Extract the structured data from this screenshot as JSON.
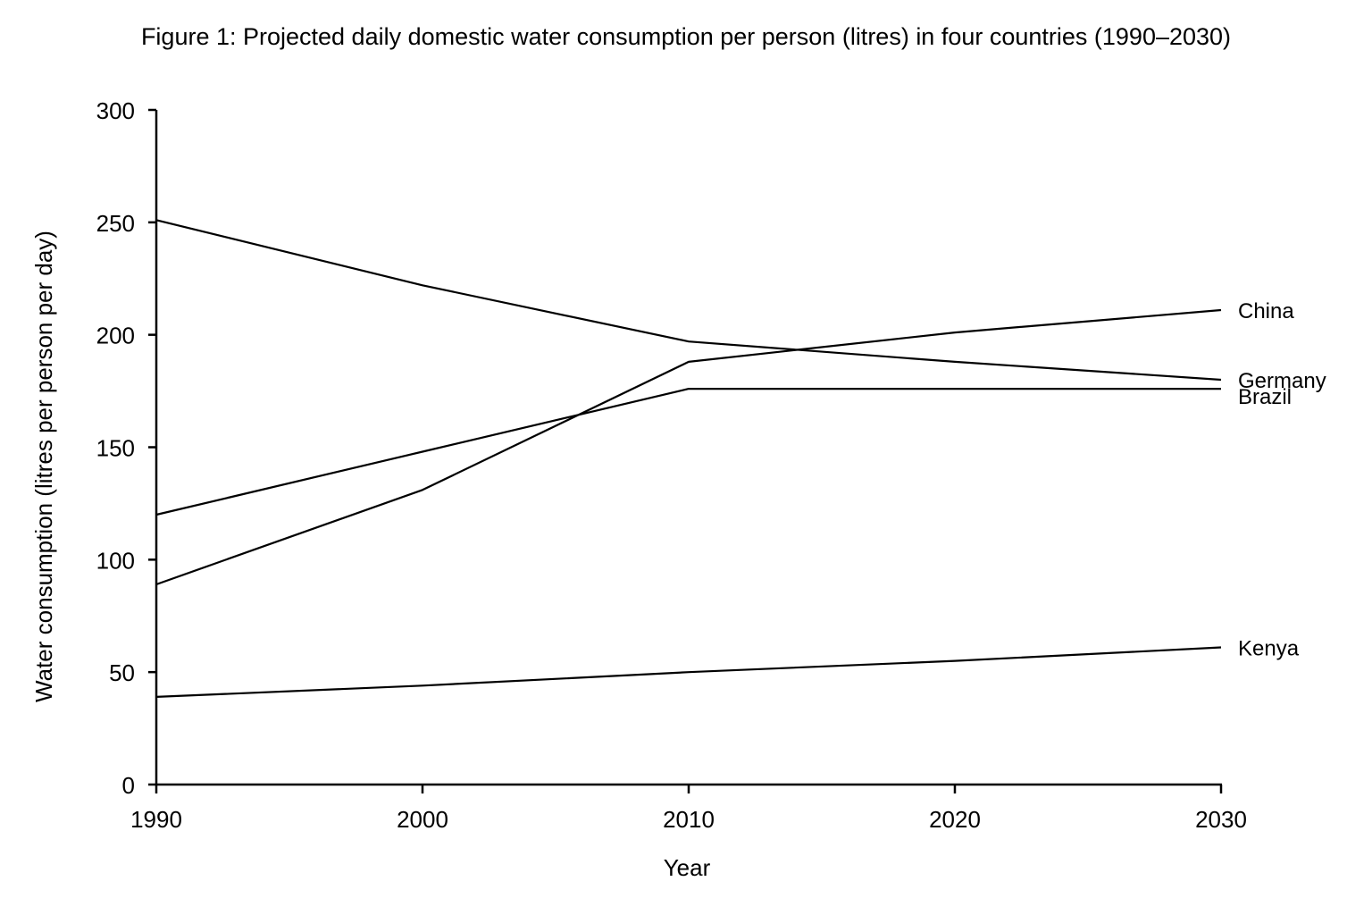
{
  "chart_data": {
    "type": "line",
    "title": "Figure 1: Projected daily domestic water consumption per person (litres) in four countries (1990–2030)",
    "xlabel": "Year",
    "ylabel": "Water consumption (litres per person per day)",
    "x": [
      1990,
      2000,
      2010,
      2020,
      2030
    ],
    "xlim": [
      1990,
      2030
    ],
    "ylim": [
      0,
      300
    ],
    "x_ticks": [
      "1990",
      "2000",
      "2010",
      "2020",
      "2030"
    ],
    "y_ticks": [
      "0",
      "50",
      "100",
      "150",
      "200",
      "250",
      "300"
    ],
    "grid": false,
    "legend": "direct labels at right end of lines",
    "series": [
      {
        "name": "China",
        "values": [
          89,
          131,
          188,
          201,
          211
        ]
      },
      {
        "name": "Germany",
        "values": [
          251,
          222,
          197,
          188,
          180
        ]
      },
      {
        "name": "Brazil",
        "values": [
          120,
          148,
          176,
          176,
          176
        ]
      },
      {
        "name": "Kenya",
        "values": [
          39,
          44,
          50,
          55,
          61
        ]
      }
    ]
  }
}
